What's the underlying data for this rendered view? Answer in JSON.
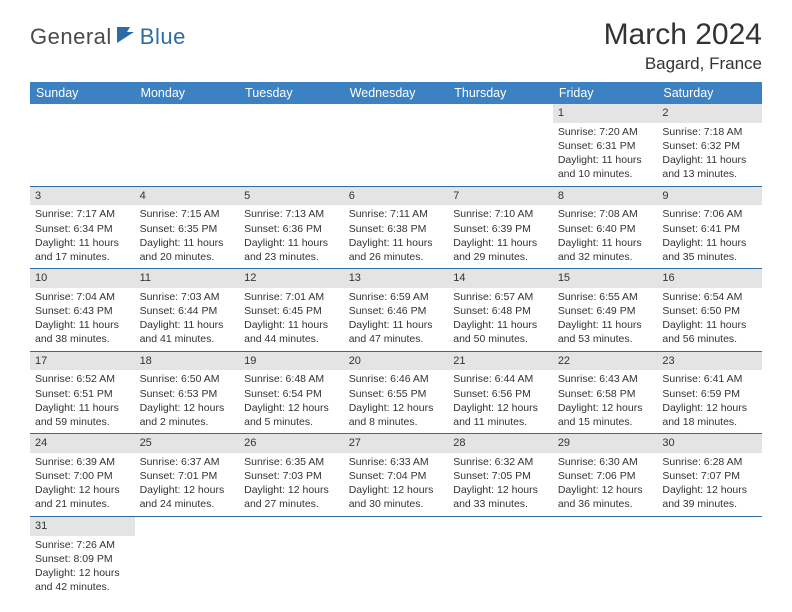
{
  "logo": {
    "part1": "General",
    "part2": "Blue"
  },
  "title": "March 2024",
  "location": "Bagard, France",
  "colors": {
    "header_bg": "#3c81c2",
    "daynum_bg": "#e4e4e4",
    "row_border": "#2e6ca4",
    "text": "#333333",
    "logo_dark": "#4a4a4a",
    "logo_blue": "#2e6ca4"
  },
  "weekdays": [
    "Sunday",
    "Monday",
    "Tuesday",
    "Wednesday",
    "Thursday",
    "Friday",
    "Saturday"
  ],
  "weeks": [
    [
      {
        "blank": true
      },
      {
        "blank": true
      },
      {
        "blank": true
      },
      {
        "blank": true
      },
      {
        "blank": true
      },
      {
        "day": "1",
        "sunrise": "Sunrise: 7:20 AM",
        "sunset": "Sunset: 6:31 PM",
        "day1": "Daylight: 11 hours",
        "day2": "and 10 minutes."
      },
      {
        "day": "2",
        "sunrise": "Sunrise: 7:18 AM",
        "sunset": "Sunset: 6:32 PM",
        "day1": "Daylight: 11 hours",
        "day2": "and 13 minutes."
      }
    ],
    [
      {
        "day": "3",
        "sunrise": "Sunrise: 7:17 AM",
        "sunset": "Sunset: 6:34 PM",
        "day1": "Daylight: 11 hours",
        "day2": "and 17 minutes."
      },
      {
        "day": "4",
        "sunrise": "Sunrise: 7:15 AM",
        "sunset": "Sunset: 6:35 PM",
        "day1": "Daylight: 11 hours",
        "day2": "and 20 minutes."
      },
      {
        "day": "5",
        "sunrise": "Sunrise: 7:13 AM",
        "sunset": "Sunset: 6:36 PM",
        "day1": "Daylight: 11 hours",
        "day2": "and 23 minutes."
      },
      {
        "day": "6",
        "sunrise": "Sunrise: 7:11 AM",
        "sunset": "Sunset: 6:38 PM",
        "day1": "Daylight: 11 hours",
        "day2": "and 26 minutes."
      },
      {
        "day": "7",
        "sunrise": "Sunrise: 7:10 AM",
        "sunset": "Sunset: 6:39 PM",
        "day1": "Daylight: 11 hours",
        "day2": "and 29 minutes."
      },
      {
        "day": "8",
        "sunrise": "Sunrise: 7:08 AM",
        "sunset": "Sunset: 6:40 PM",
        "day1": "Daylight: 11 hours",
        "day2": "and 32 minutes."
      },
      {
        "day": "9",
        "sunrise": "Sunrise: 7:06 AM",
        "sunset": "Sunset: 6:41 PM",
        "day1": "Daylight: 11 hours",
        "day2": "and 35 minutes."
      }
    ],
    [
      {
        "day": "10",
        "sunrise": "Sunrise: 7:04 AM",
        "sunset": "Sunset: 6:43 PM",
        "day1": "Daylight: 11 hours",
        "day2": "and 38 minutes."
      },
      {
        "day": "11",
        "sunrise": "Sunrise: 7:03 AM",
        "sunset": "Sunset: 6:44 PM",
        "day1": "Daylight: 11 hours",
        "day2": "and 41 minutes."
      },
      {
        "day": "12",
        "sunrise": "Sunrise: 7:01 AM",
        "sunset": "Sunset: 6:45 PM",
        "day1": "Daylight: 11 hours",
        "day2": "and 44 minutes."
      },
      {
        "day": "13",
        "sunrise": "Sunrise: 6:59 AM",
        "sunset": "Sunset: 6:46 PM",
        "day1": "Daylight: 11 hours",
        "day2": "and 47 minutes."
      },
      {
        "day": "14",
        "sunrise": "Sunrise: 6:57 AM",
        "sunset": "Sunset: 6:48 PM",
        "day1": "Daylight: 11 hours",
        "day2": "and 50 minutes."
      },
      {
        "day": "15",
        "sunrise": "Sunrise: 6:55 AM",
        "sunset": "Sunset: 6:49 PM",
        "day1": "Daylight: 11 hours",
        "day2": "and 53 minutes."
      },
      {
        "day": "16",
        "sunrise": "Sunrise: 6:54 AM",
        "sunset": "Sunset: 6:50 PM",
        "day1": "Daylight: 11 hours",
        "day2": "and 56 minutes."
      }
    ],
    [
      {
        "day": "17",
        "sunrise": "Sunrise: 6:52 AM",
        "sunset": "Sunset: 6:51 PM",
        "day1": "Daylight: 11 hours",
        "day2": "and 59 minutes."
      },
      {
        "day": "18",
        "sunrise": "Sunrise: 6:50 AM",
        "sunset": "Sunset: 6:53 PM",
        "day1": "Daylight: 12 hours",
        "day2": "and 2 minutes."
      },
      {
        "day": "19",
        "sunrise": "Sunrise: 6:48 AM",
        "sunset": "Sunset: 6:54 PM",
        "day1": "Daylight: 12 hours",
        "day2": "and 5 minutes."
      },
      {
        "day": "20",
        "sunrise": "Sunrise: 6:46 AM",
        "sunset": "Sunset: 6:55 PM",
        "day1": "Daylight: 12 hours",
        "day2": "and 8 minutes."
      },
      {
        "day": "21",
        "sunrise": "Sunrise: 6:44 AM",
        "sunset": "Sunset: 6:56 PM",
        "day1": "Daylight: 12 hours",
        "day2": "and 11 minutes."
      },
      {
        "day": "22",
        "sunrise": "Sunrise: 6:43 AM",
        "sunset": "Sunset: 6:58 PM",
        "day1": "Daylight: 12 hours",
        "day2": "and 15 minutes."
      },
      {
        "day": "23",
        "sunrise": "Sunrise: 6:41 AM",
        "sunset": "Sunset: 6:59 PM",
        "day1": "Daylight: 12 hours",
        "day2": "and 18 minutes."
      }
    ],
    [
      {
        "day": "24",
        "sunrise": "Sunrise: 6:39 AM",
        "sunset": "Sunset: 7:00 PM",
        "day1": "Daylight: 12 hours",
        "day2": "and 21 minutes."
      },
      {
        "day": "25",
        "sunrise": "Sunrise: 6:37 AM",
        "sunset": "Sunset: 7:01 PM",
        "day1": "Daylight: 12 hours",
        "day2": "and 24 minutes."
      },
      {
        "day": "26",
        "sunrise": "Sunrise: 6:35 AM",
        "sunset": "Sunset: 7:03 PM",
        "day1": "Daylight: 12 hours",
        "day2": "and 27 minutes."
      },
      {
        "day": "27",
        "sunrise": "Sunrise: 6:33 AM",
        "sunset": "Sunset: 7:04 PM",
        "day1": "Daylight: 12 hours",
        "day2": "and 30 minutes."
      },
      {
        "day": "28",
        "sunrise": "Sunrise: 6:32 AM",
        "sunset": "Sunset: 7:05 PM",
        "day1": "Daylight: 12 hours",
        "day2": "and 33 minutes."
      },
      {
        "day": "29",
        "sunrise": "Sunrise: 6:30 AM",
        "sunset": "Sunset: 7:06 PM",
        "day1": "Daylight: 12 hours",
        "day2": "and 36 minutes."
      },
      {
        "day": "30",
        "sunrise": "Sunrise: 6:28 AM",
        "sunset": "Sunset: 7:07 PM",
        "day1": "Daylight: 12 hours",
        "day2": "and 39 minutes."
      }
    ],
    [
      {
        "day": "31",
        "sunrise": "Sunrise: 7:26 AM",
        "sunset": "Sunset: 8:09 PM",
        "day1": "Daylight: 12 hours",
        "day2": "and 42 minutes."
      },
      {
        "blank": true
      },
      {
        "blank": true
      },
      {
        "blank": true
      },
      {
        "blank": true
      },
      {
        "blank": true
      },
      {
        "blank": true
      }
    ]
  ]
}
